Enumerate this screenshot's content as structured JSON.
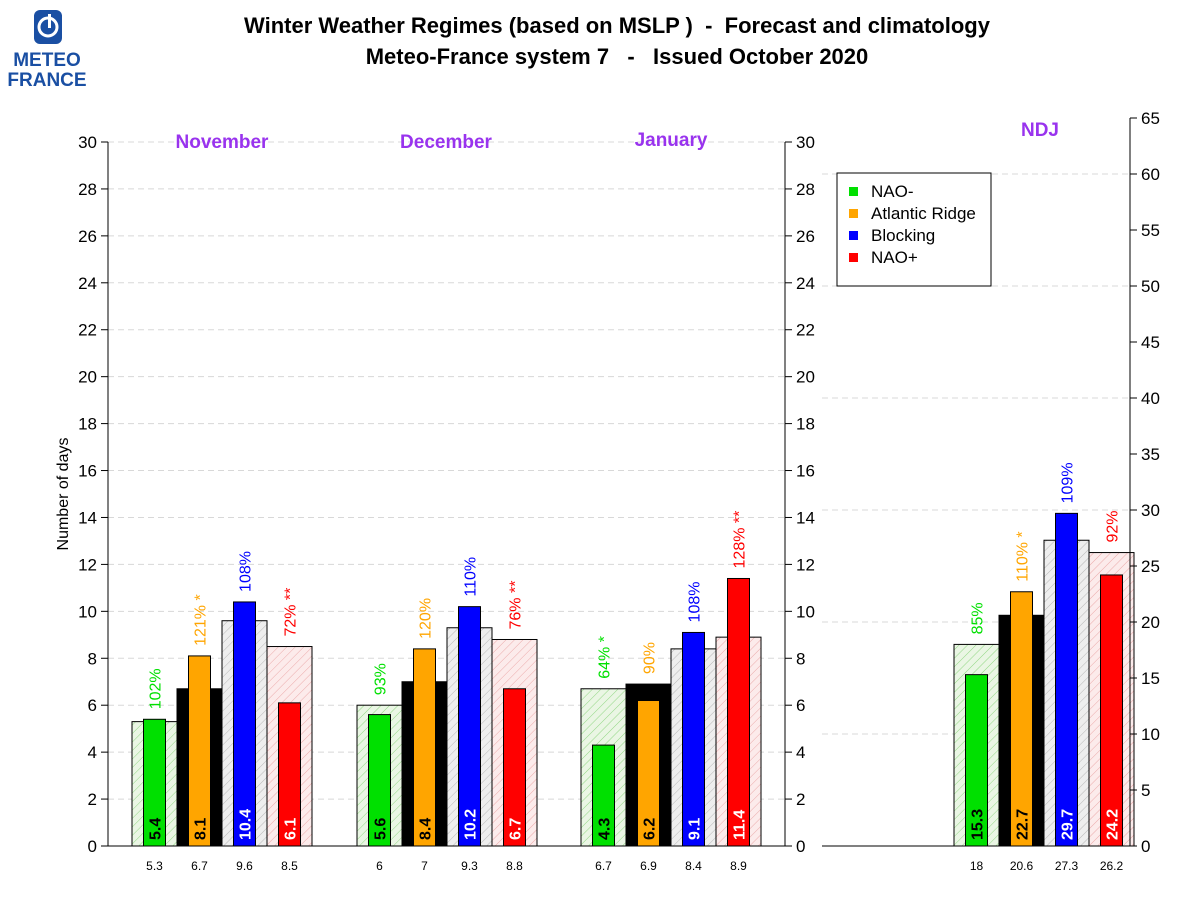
{
  "logo": {
    "line1": "METEO",
    "line2": "FRANCE",
    "color": "#1a4fa3"
  },
  "title": {
    "line1": "Winter Weather Regimes (based on MSLP )  -  Forecast and climatology",
    "line2": "Meteo-France system 7   -   Issued October 2020"
  },
  "colors": {
    "NAO-": "#00e000",
    "Atlantic Ridge": "#ffa500",
    "Blocking": "#0000ff",
    "NAO+": "#ff0000",
    "clim_fill": {
      "NAO-": "#e9f5e3",
      "Atlantic Ridge": "#f9f6dd",
      "Blocking": "#ececec",
      "NAO+": "#fbe9e9"
    },
    "month_label": "#9933ee"
  },
  "chart_data": [
    {
      "type": "bar",
      "title": "",
      "ylabel": "Number of days",
      "ylim": [
        0,
        30
      ],
      "yticks": [
        0,
        2,
        4,
        6,
        8,
        10,
        12,
        14,
        16,
        18,
        20,
        22,
        24,
        26,
        28,
        30
      ],
      "legend": {
        "placement": "top-right",
        "entries": [
          "NAO-",
          "Atlantic Ridge",
          "Blocking",
          "NAO+"
        ]
      },
      "series_names": [
        "NAO-",
        "Atlantic Ridge",
        "Blocking",
        "NAO+"
      ],
      "groups": [
        {
          "label": "November",
          "forecast": [
            5.4,
            8.1,
            10.4,
            6.1
          ],
          "forecast_labels": [
            "5.4",
            "8.1",
            "10.4",
            "6.1"
          ],
          "climatology": [
            5.3,
            6.7,
            9.6,
            8.5
          ],
          "clim_labels": [
            "5.3",
            "6.7",
            "9.6",
            "8.5"
          ],
          "percent_labels": [
            "102%",
            "121% *",
            "108%",
            "72% **"
          ]
        },
        {
          "label": "December",
          "forecast": [
            5.6,
            8.4,
            10.2,
            6.7
          ],
          "forecast_labels": [
            "5.6",
            "8.4",
            "10.2",
            "6.7"
          ],
          "climatology": [
            6,
            7,
            9.3,
            8.8
          ],
          "clim_labels": [
            "6",
            "7",
            "9.3",
            "8.8"
          ],
          "percent_labels": [
            "93%",
            "120%",
            "110%",
            "76% **"
          ]
        },
        {
          "label": "January",
          "forecast": [
            4.3,
            6.2,
            9.1,
            11.4
          ],
          "forecast_labels": [
            "4.3",
            "6.2",
            "9.1",
            "11.4"
          ],
          "climatology": [
            6.7,
            6.9,
            8.4,
            8.9
          ],
          "clim_labels": [
            "6.7",
            "6.9",
            "8.4",
            "8.9"
          ],
          "percent_labels": [
            "64% *",
            "90%",
            "108%",
            "128% **"
          ]
        }
      ]
    },
    {
      "type": "bar",
      "title": "",
      "ylim": [
        0,
        65
      ],
      "yticks": [
        0,
        5,
        10,
        15,
        20,
        25,
        30,
        35,
        40,
        45,
        50,
        55,
        60,
        65
      ],
      "series_names": [
        "NAO-",
        "Atlantic Ridge",
        "Blocking",
        "NAO+"
      ],
      "groups": [
        {
          "label": "NDJ",
          "forecast": [
            15.3,
            22.7,
            29.7,
            24.2
          ],
          "forecast_labels": [
            "15.3",
            "22.7",
            "29.7",
            "24.2"
          ],
          "climatology": [
            18,
            20.6,
            27.3,
            26.2
          ],
          "clim_labels": [
            "18",
            "20.6",
            "27.3",
            "26.2"
          ],
          "percent_labels": [
            "85%",
            "110% *",
            "109%",
            "92%"
          ]
        }
      ]
    }
  ]
}
